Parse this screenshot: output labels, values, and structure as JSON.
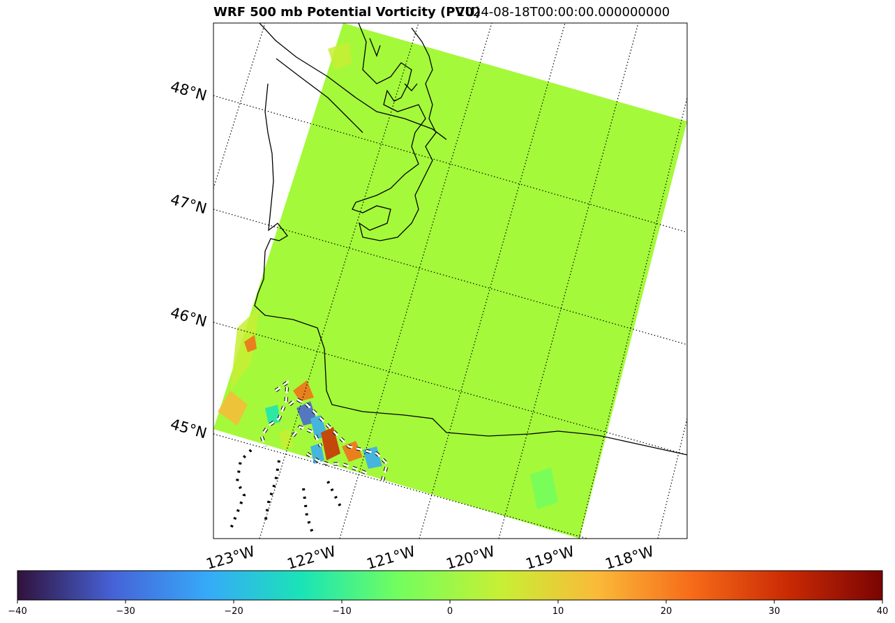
{
  "title": {
    "left": "WRF 500 mb Potential Vorticity (PVU)",
    "right": "2024-08-18T00:00:00.000000000"
  },
  "map": {
    "variable": "Potential Vorticity",
    "units": "PVU",
    "level": "500 mb",
    "model": "WRF",
    "lat_labels": [
      "48°N",
      "47°N",
      "46°N",
      "45°N"
    ],
    "lon_labels": [
      "123°W",
      "122°W",
      "121°W",
      "120°W",
      "119°W",
      "118°W"
    ],
    "gridline_style": "dotted",
    "domain_fill_color": "#a4f93a",
    "coastline_color": "#000000",
    "contour_color": "#000000",
    "dashed_contour_color": "#ffffff"
  },
  "colorbar": {
    "colormap": "turbo",
    "min": -40,
    "max": 40,
    "ticks": [
      "−40",
      "−30",
      "−20",
      "−10",
      "0",
      "10",
      "20",
      "30",
      "40"
    ],
    "stops": [
      "#30123b",
      "#4662d7",
      "#36aaf9",
      "#1ae4b6",
      "#72fe5e",
      "#c8ef34",
      "#faba39",
      "#f66b19",
      "#ca2a04",
      "#7a0403"
    ]
  }
}
